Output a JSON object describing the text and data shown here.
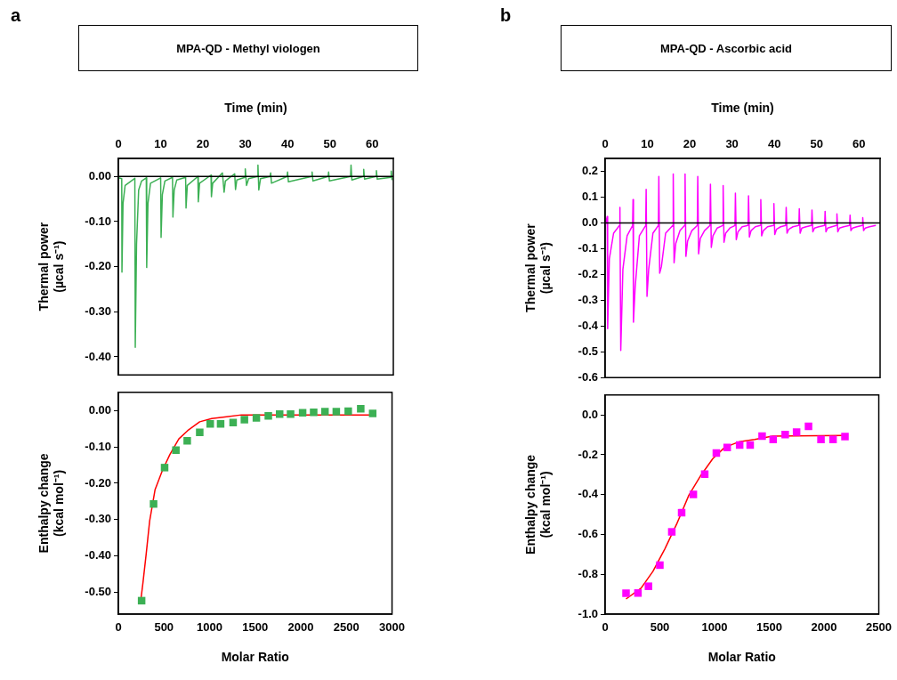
{
  "chart_data": [
    {
      "type": "line",
      "title": "MPA-QD - Methyl viologen",
      "annotations": [
        "a"
      ],
      "xlabel": "Time (min)",
      "ylabel": "Thermal power (µcal s⁻¹)",
      "xlim": [
        0,
        65
      ],
      "xticks": [
        0,
        10,
        20,
        30,
        40,
        50,
        60
      ],
      "ylim": [
        -0.44,
        0.04
      ],
      "yticks": [
        {
          "value": 0,
          "label": "0.00"
        },
        {
          "value": -0.1,
          "label": "-0.10"
        },
        {
          "value": -0.2,
          "label": "-0.20"
        },
        {
          "value": -0.3,
          "label": "-0.30"
        },
        {
          "value": -0.4,
          "label": "-0.40"
        }
      ],
      "marker": "none",
      "ref_lines": [
        {
          "axis": "y",
          "value": 0,
          "color": "#000000"
        }
      ],
      "series": [
        {
          "color": "#3cb054",
          "x": [
            0,
            0.8,
            0.85,
            1.1,
            1.6,
            3.9,
            4.0,
            4.3,
            4.8,
            5.5,
            6.6,
            6.7,
            7.0,
            7.6,
            10.0,
            10.1,
            10.4,
            11,
            12.8,
            12.9,
            13.2,
            13.8,
            15.9,
            16.0,
            16.3,
            18.8,
            18.9,
            19.2,
            21.9,
            22.0,
            22.3,
            24.6,
            25.0,
            25.3,
            27.5,
            27.7,
            28,
            29.9,
            30.0,
            30.3,
            30.8,
            32.9,
            33.0,
            33.2,
            33.6,
            35.9,
            36.0,
            36.2,
            39.9,
            40.0,
            40.2,
            45.7,
            45.8,
            46,
            49.6,
            49.7,
            49.9,
            54.9,
            55.0,
            55.2,
            57.9,
            58.0,
            58.2,
            60.9,
            61.0,
            61.2,
            64.4,
            64.5,
            64.7
          ],
          "values": [
            -0.003,
            -0.005,
            -0.212,
            -0.06,
            -0.02,
            -0.004,
            -0.379,
            -0.15,
            -0.03,
            -0.01,
            -0.003,
            -0.202,
            -0.06,
            -0.015,
            -0.003,
            -0.135,
            -0.04,
            -0.01,
            -0.002,
            -0.09,
            -0.03,
            -0.008,
            -0.002,
            -0.07,
            -0.02,
            0.0,
            -0.056,
            -0.015,
            0.003,
            -0.045,
            -0.015,
            0.008,
            -0.035,
            -0.01,
            0.006,
            -0.029,
            -0.008,
            -0.002,
            0.017,
            -0.02,
            -0.005,
            0.0,
            0.025,
            -0.03,
            -0.005,
            0.0,
            0.008,
            -0.015,
            0.0,
            0.01,
            -0.012,
            0.0,
            0.01,
            -0.01,
            0.0,
            0.01,
            -0.01,
            0.0,
            0.025,
            -0.008,
            0.0,
            0.016,
            -0.006,
            0.0,
            0.013,
            -0.006,
            -0.002,
            0.012,
            -0.008
          ]
        }
      ]
    },
    {
      "type": "scatter",
      "xlabel": "Molar Ratio",
      "ylabel": "Enthalpy change (kcal mol⁻¹)",
      "xlim": [
        0,
        3000
      ],
      "xticks": [
        0,
        500,
        1000,
        1500,
        2000,
        2500,
        3000
      ],
      "ylim": [
        -0.56,
        0.05
      ],
      "yticks": [
        {
          "value": 0,
          "label": "0.00"
        },
        {
          "value": -0.1,
          "label": "-0.10"
        },
        {
          "value": -0.2,
          "label": "-0.20"
        },
        {
          "value": -0.3,
          "label": "-0.30"
        },
        {
          "value": -0.4,
          "label": "-0.40"
        },
        {
          "value": -0.5,
          "label": "-0.50"
        }
      ],
      "marker": "square",
      "series": [
        {
          "color": "#3cb054",
          "x": [
            255,
            386,
            507,
            631,
            755,
            892,
            1007,
            1121,
            1258,
            1382,
            1513,
            1644,
            1768,
            1888,
            2020,
            2141,
            2265,
            2389,
            2520,
            2657,
            2788
          ],
          "values": [
            -0.523,
            -0.257,
            -0.157,
            -0.109,
            -0.083,
            -0.06,
            -0.037,
            -0.037,
            -0.033,
            -0.025,
            -0.02,
            -0.015,
            -0.01,
            -0.01,
            -0.006,
            -0.005,
            -0.003,
            -0.003,
            -0.002,
            0.005,
            -0.008
          ]
        },
        {
          "type": "line",
          "color": "#ff0000",
          "marker": "none",
          "x": [
            248,
            271,
            304,
            343,
            402,
            484,
            565,
            663,
            761,
            892,
            1023,
            1186,
            1350,
            2788
          ],
          "values": [
            -0.518,
            -0.471,
            -0.397,
            -0.304,
            -0.218,
            -0.164,
            -0.121,
            -0.078,
            -0.055,
            -0.031,
            -0.022,
            -0.017,
            -0.012,
            -0.012
          ]
        }
      ]
    },
    {
      "type": "line",
      "title": "MPA-QD - Ascorbic acid",
      "annotations": [
        "b"
      ],
      "xlabel": "Time (min)",
      "ylabel": "Thermal power (µcal s⁻¹)",
      "xlim": [
        0,
        65
      ],
      "xticks": [
        0,
        10,
        20,
        30,
        40,
        50,
        60
      ],
      "ylim": [
        -0.6,
        0.25
      ],
      "yticks": [
        {
          "value": 0.2,
          "label": "0.2"
        },
        {
          "value": 0.1,
          "label": "0.1"
        },
        {
          "value": 0,
          "label": "0.0"
        },
        {
          "value": -0.1,
          "label": "-0.1"
        },
        {
          "value": -0.2,
          "label": "-0.2"
        },
        {
          "value": -0.3,
          "label": "-0.3"
        },
        {
          "value": -0.4,
          "label": "-0.4"
        },
        {
          "value": -0.5,
          "label": "-0.5"
        },
        {
          "value": -0.6,
          "label": "-0.6"
        }
      ],
      "marker": "none",
      "ref_lines": [
        {
          "axis": "y",
          "value": 0,
          "color": "#000000"
        }
      ],
      "series": [
        {
          "color": "#ff00ff",
          "x": [
            0,
            0.5,
            0.6,
            1.0,
            2.0,
            3.4,
            3.5,
            3.7,
            4.2,
            5.2,
            6.5,
            6.6,
            6.7,
            7.1,
            8.1,
            9.6,
            9.7,
            9.9,
            10.3,
            11.3,
            12.6,
            12.7,
            12.9,
            13.3,
            14.3,
            16.0,
            16.1,
            16.3,
            16.7,
            17.7,
            18.8,
            18.9,
            19.1,
            19.5,
            20.5,
            21.8,
            21.9,
            22.1,
            22.5,
            23.5,
            24.8,
            24.9,
            25.1,
            25.5,
            26.5,
            27.8,
            27.9,
            28.1,
            28.5,
            29.5,
            30.7,
            30.8,
            31.0,
            31.4,
            32.4,
            33.8,
            33.9,
            34.1,
            34.5,
            35.5,
            36.7,
            36.8,
            37.0,
            37.4,
            38.4,
            39.8,
            39.9,
            40.1,
            40.5,
            41.5,
            42.7,
            42.8,
            43.0,
            43.4,
            44.4,
            45.8,
            45.9,
            46.1,
            46.5,
            47.5,
            48.8,
            48.9,
            49.1,
            49.5,
            50.5,
            51.9,
            52.0,
            52.2,
            52.6,
            53.6,
            54.7,
            54.8,
            55.0,
            55.4,
            56.4,
            57.8,
            57.9,
            58.1,
            58.5,
            59.5,
            60.8,
            60.9,
            61.1,
            61.5,
            62.5,
            64.0
          ],
          "values": [
            -0.01,
            0.025,
            -0.41,
            -0.14,
            -0.04,
            -0.01,
            0.06,
            -0.495,
            -0.18,
            -0.05,
            -0.01,
            0.09,
            -0.385,
            -0.25,
            -0.05,
            -0.01,
            0.13,
            -0.285,
            -0.18,
            -0.04,
            -0.01,
            0.18,
            -0.195,
            -0.17,
            -0.04,
            -0.01,
            0.19,
            -0.155,
            -0.08,
            -0.03,
            -0.01,
            0.19,
            -0.13,
            -0.07,
            -0.03,
            -0.01,
            0.18,
            -0.12,
            -0.06,
            -0.03,
            -0.01,
            0.15,
            -0.095,
            -0.05,
            -0.02,
            -0.01,
            0.145,
            -0.075,
            -0.04,
            -0.02,
            -0.01,
            0.115,
            -0.065,
            -0.035,
            -0.015,
            -0.01,
            0.105,
            -0.055,
            -0.03,
            -0.015,
            -0.01,
            0.09,
            -0.05,
            -0.03,
            -0.015,
            -0.01,
            0.075,
            -0.045,
            -0.025,
            -0.015,
            -0.01,
            0.06,
            -0.04,
            -0.025,
            -0.015,
            -0.01,
            0.055,
            -0.04,
            -0.02,
            -0.015,
            -0.01,
            0.05,
            -0.035,
            -0.02,
            -0.015,
            -0.01,
            0.045,
            -0.035,
            -0.02,
            -0.015,
            -0.01,
            0.035,
            -0.035,
            -0.02,
            -0.015,
            -0.01,
            0.03,
            -0.03,
            -0.02,
            -0.015,
            -0.01,
            0.02,
            -0.03,
            -0.02,
            -0.015,
            -0.01
          ]
        }
      ]
    },
    {
      "type": "scatter",
      "xlabel": "Molar Ratio",
      "ylabel": "Enthalpy change (kcal mol⁻¹)",
      "xlim": [
        0,
        2500
      ],
      "xticks": [
        0,
        500,
        1000,
        1500,
        2000,
        2500
      ],
      "ylim": [
        -1.0,
        0.1
      ],
      "yticks": [
        {
          "value": 0,
          "label": "0.0"
        },
        {
          "value": -0.2,
          "label": "-0.2"
        },
        {
          "value": -0.4,
          "label": "-0.4"
        },
        {
          "value": -0.6,
          "label": "-0.6"
        },
        {
          "value": -0.8,
          "label": "-0.8"
        },
        {
          "value": -1.0,
          "label": "-1.0"
        }
      ],
      "marker": "square",
      "series": [
        {
          "color": "#ff00ff",
          "x": [
            191,
            300,
            396,
            500,
            609,
            699,
            806,
            910,
            1016,
            1115,
            1229,
            1325,
            1434,
            1535,
            1645,
            1749,
            1858,
            1972,
            2082,
            2191
          ],
          "values": [
            -0.895,
            -0.894,
            -0.86,
            -0.754,
            -0.587,
            -0.491,
            -0.399,
            -0.297,
            -0.191,
            -0.163,
            -0.151,
            -0.151,
            -0.106,
            -0.123,
            -0.099,
            -0.086,
            -0.057,
            -0.123,
            -0.123,
            -0.109
          ]
        },
        {
          "type": "line",
          "color": "#ff0000",
          "marker": "none",
          "x": [
            191,
            328,
            437,
            546,
            656,
            765,
            874,
            984,
            1093,
            1229,
            1366,
            1530,
            2186
          ],
          "values": [
            -0.924,
            -0.87,
            -0.785,
            -0.672,
            -0.545,
            -0.403,
            -0.304,
            -0.219,
            -0.163,
            -0.134,
            -0.123,
            -0.106,
            -0.103
          ]
        }
      ]
    }
  ]
}
